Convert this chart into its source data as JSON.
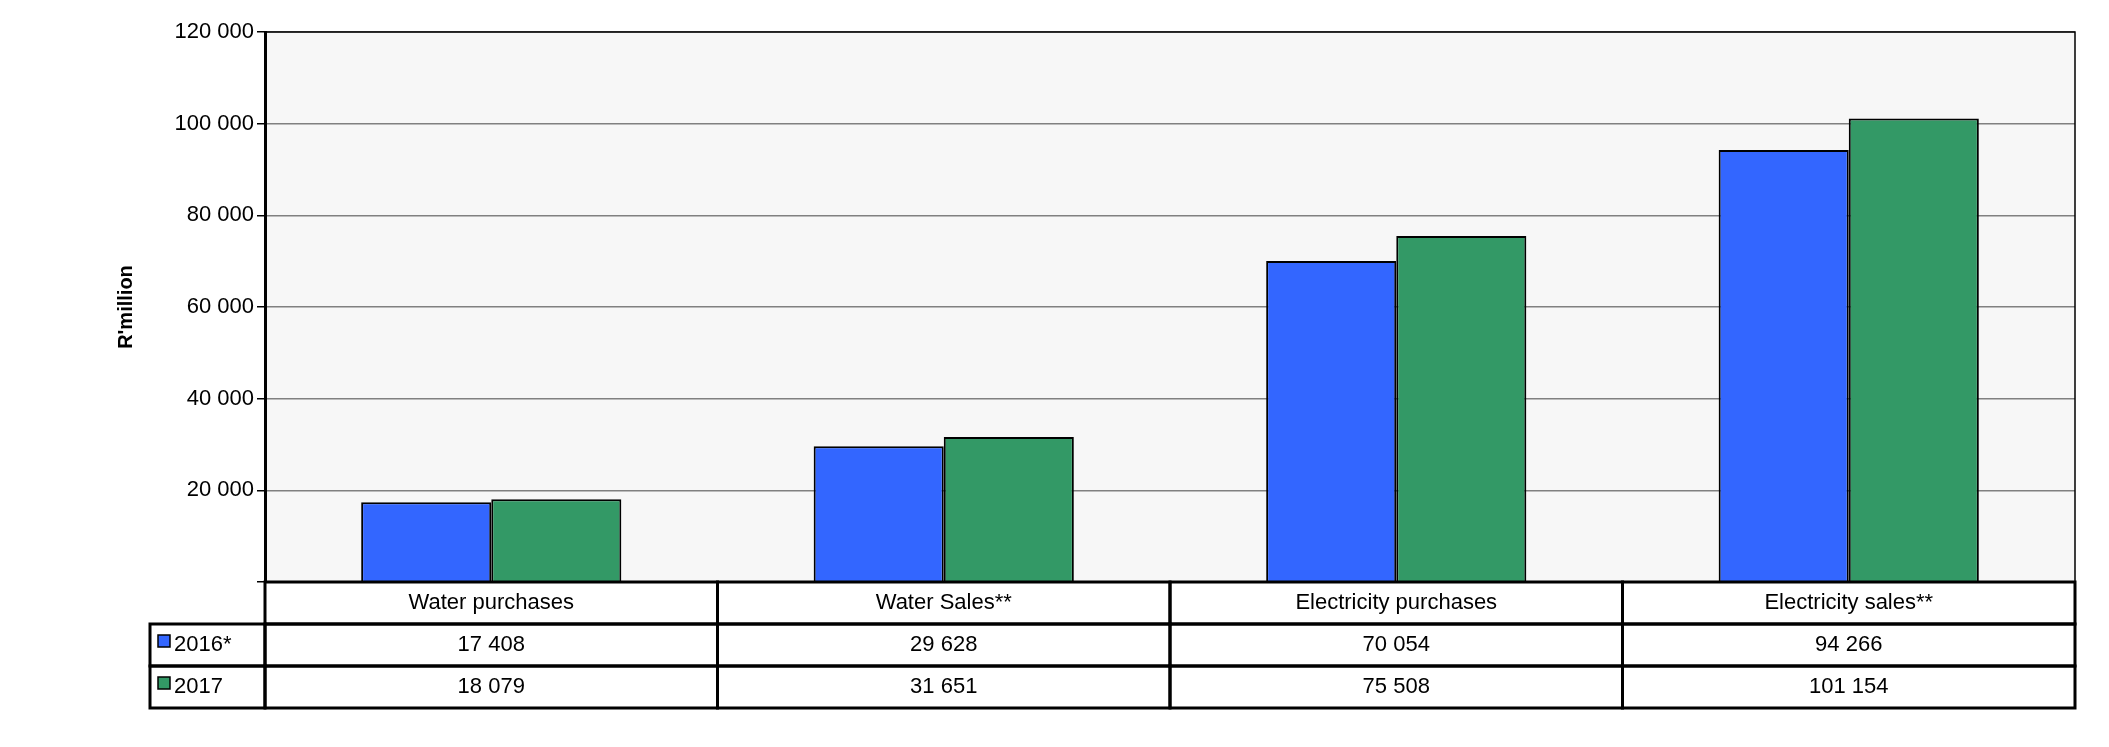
{
  "chart_data": {
    "type": "bar",
    "ylabel": "R'million",
    "categories": [
      "Water purchases",
      "Water Sales**",
      "Electricity purchases",
      "Electricity sales**"
    ],
    "series": [
      {
        "name": "2016*",
        "color": "#3366ff",
        "values": [
          17408,
          29628,
          70054,
          94266
        ],
        "value_labels": [
          "17 408",
          "29 628",
          "70 054",
          "94 266"
        ]
      },
      {
        "name": "2017",
        "color": "#339966",
        "values": [
          18079,
          31651,
          75508,
          101154
        ],
        "value_labels": [
          "18 079",
          "31 651",
          "75 508",
          "101 154"
        ]
      }
    ],
    "ylim": [
      0,
      120000
    ],
    "yticks": [
      {
        "value": 0,
        "label": null
      },
      {
        "value": 20000,
        "label": "20 000"
      },
      {
        "value": 40000,
        "label": "40 000"
      },
      {
        "value": 60000,
        "label": "60 000"
      },
      {
        "value": 80000,
        "label": "80 000"
      },
      {
        "value": 100000,
        "label": "100 000"
      },
      {
        "value": 120000,
        "label": "120 000"
      }
    ],
    "grid": "y",
    "legend": "bottom left"
  }
}
